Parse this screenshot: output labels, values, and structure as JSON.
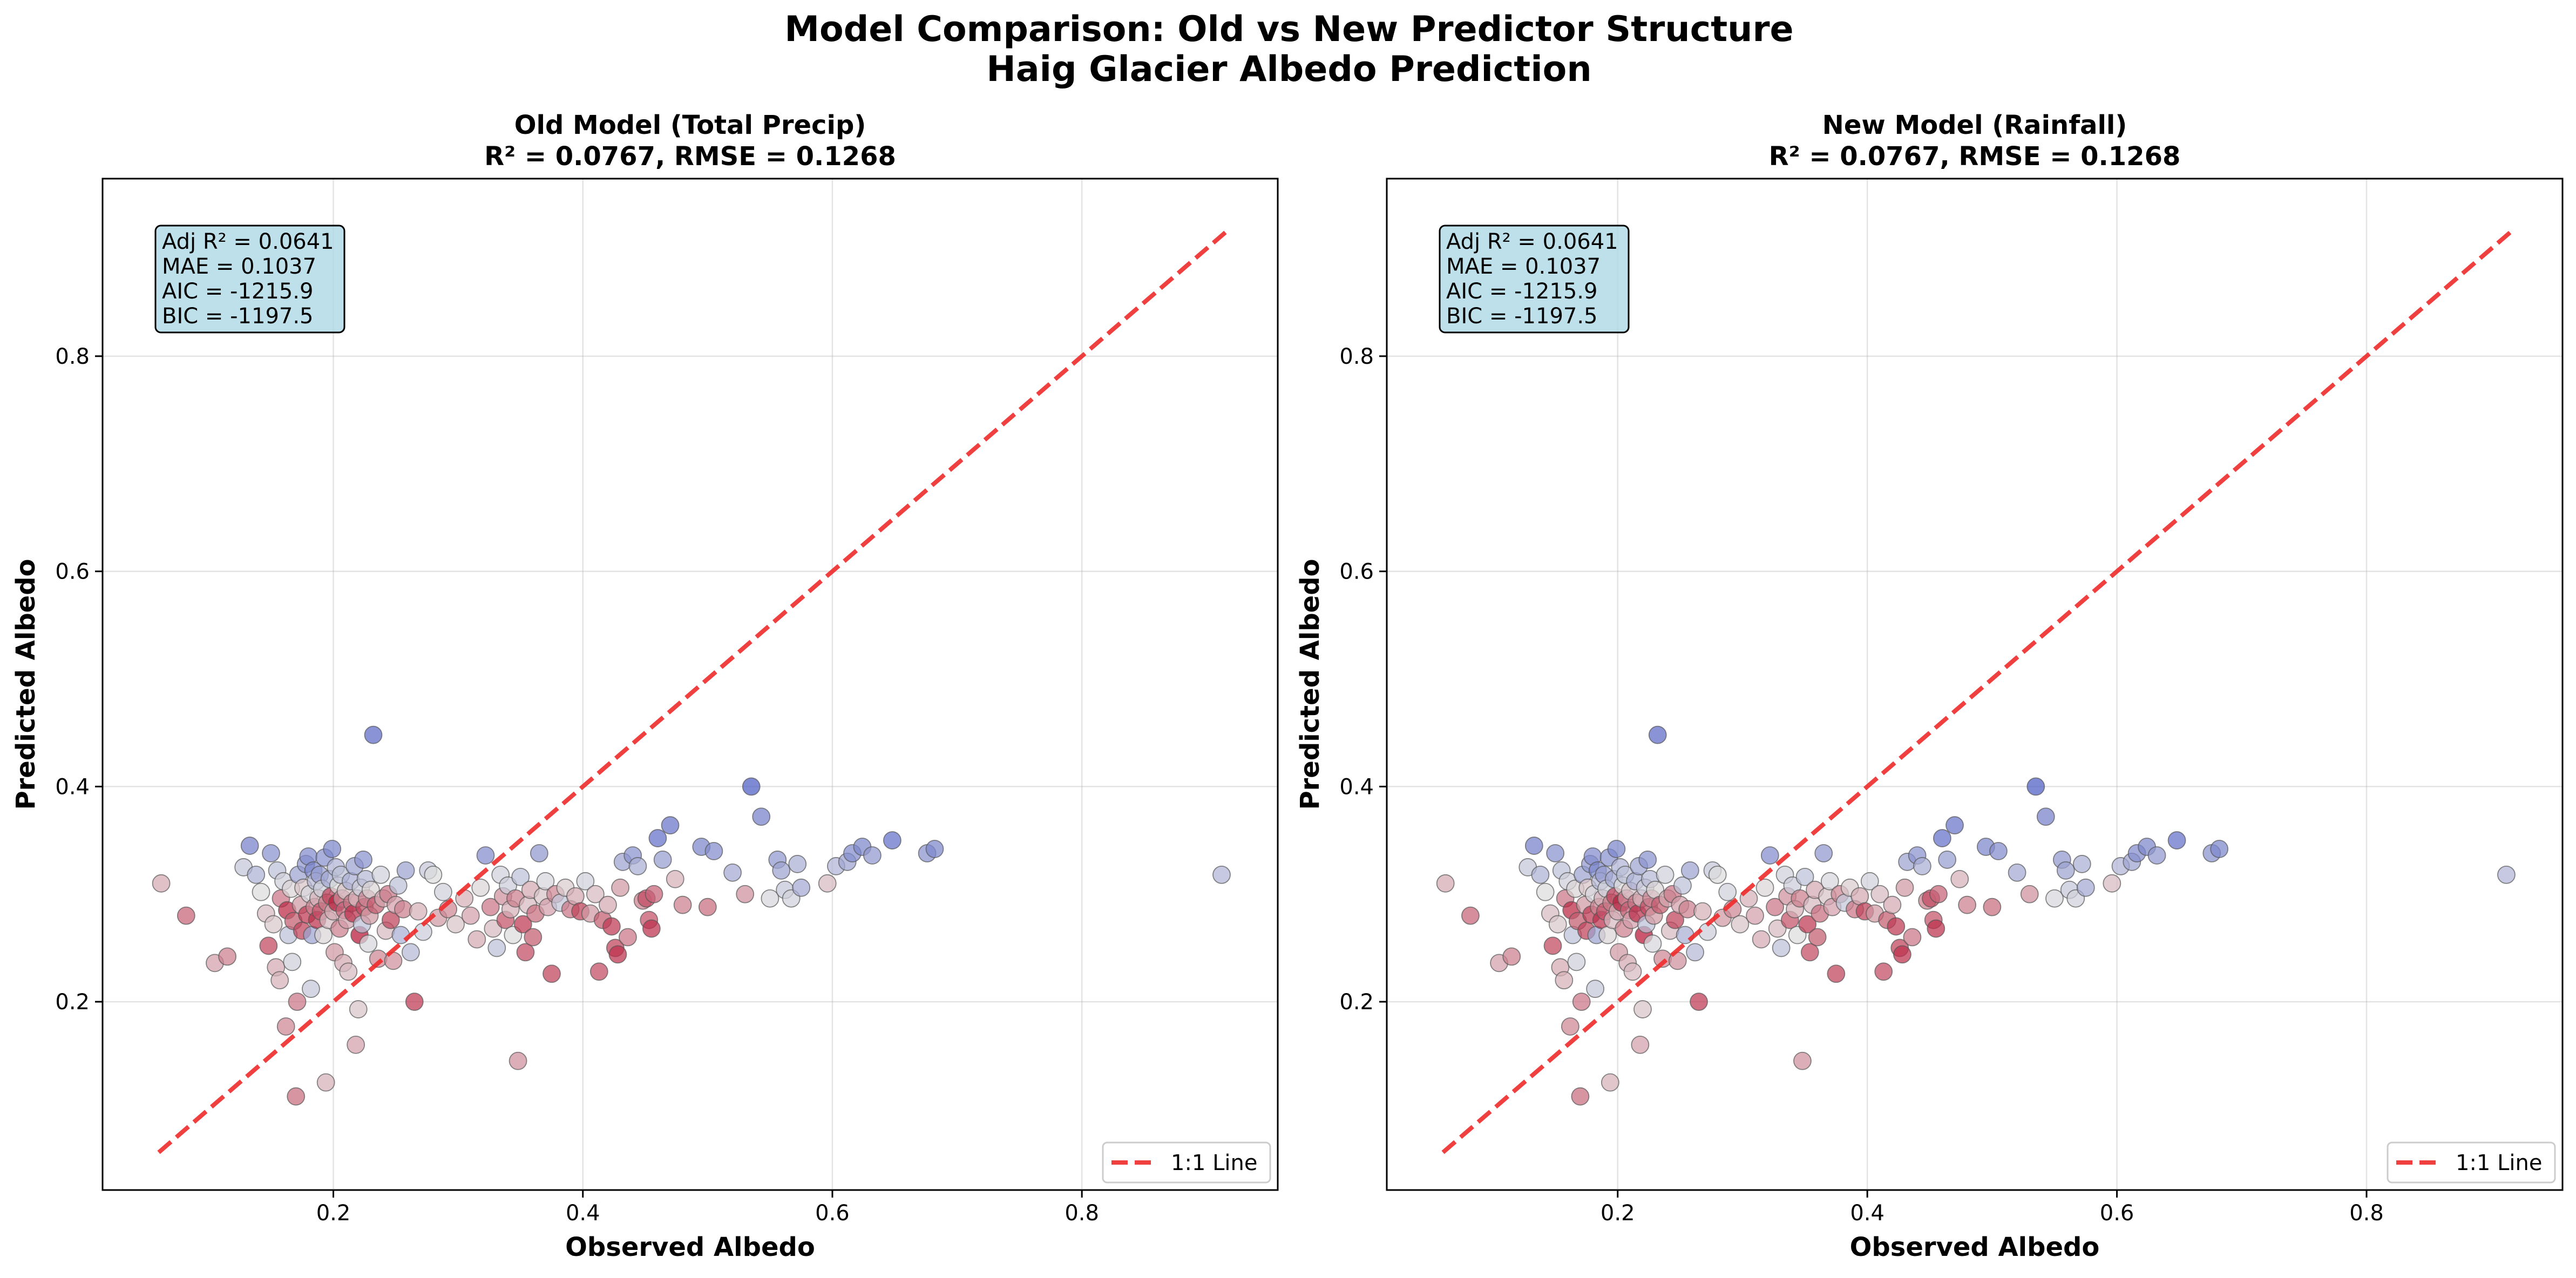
{
  "figure": {
    "title_line1": "Model Comparison: Old vs New Predictor Structure",
    "title_line2": "Haig Glacier Albedo Prediction"
  },
  "chart_data": [
    {
      "type": "scatter",
      "title_line1": "Old Model (Total Precip)",
      "title_line2": "R² = 0.0767, RMSE = 0.1268",
      "xlabel": "Observed Albedo",
      "ylabel": "Predicted Albedo",
      "xlim": [
        0.015,
        0.957
      ],
      "ylim": [
        0.025,
        0.965
      ],
      "xticks": [
        0.2,
        0.4,
        0.6,
        0.8
      ],
      "yticks": [
        0.2,
        0.4,
        0.6,
        0.8
      ],
      "grid": true,
      "stats_text": [
        "Adj R² = 0.0641",
        "MAE = 0.1037",
        "AIC = -1215.9",
        "BIC = -1197.5"
      ],
      "legend_position": "lower-right",
      "legend": [
        {
          "label": "1:1 Line",
          "color": "#ee2a2a",
          "style": "dashed"
        }
      ],
      "reference_line": {
        "x": [
          0.06,
          0.915
        ],
        "y": [
          0.06,
          0.915
        ]
      },
      "colormap": "coolwarm"
    },
    {
      "type": "scatter",
      "title_line1": "New Model (Rainfall)",
      "title_line2": "R² = 0.0767, RMSE = 0.1268",
      "xlabel": "Observed Albedo",
      "ylabel": "Predicted Albedo",
      "xlim": [
        0.015,
        0.957
      ],
      "ylim": [
        0.025,
        0.965
      ],
      "xticks": [
        0.2,
        0.4,
        0.6,
        0.8
      ],
      "yticks": [
        0.2,
        0.4,
        0.6,
        0.8
      ],
      "grid": true,
      "stats_text": [
        "Adj R² = 0.0641",
        "MAE = 0.1037",
        "AIC = -1215.9",
        "BIC = -1197.5"
      ],
      "legend_position": "lower-right",
      "legend": [
        {
          "label": "1:1 Line",
          "color": "#ee2a2a",
          "style": "dashed"
        }
      ],
      "reference_line": {
        "x": [
          0.06,
          0.915
        ],
        "y": [
          0.06,
          0.915
        ]
      },
      "colormap": "coolwarm"
    }
  ],
  "points": [
    {
      "x": 0.062,
      "y": 0.31,
      "c": 0.62
    },
    {
      "x": 0.082,
      "y": 0.28,
      "c": 0.78
    },
    {
      "x": 0.105,
      "y": 0.236,
      "c": 0.64
    },
    {
      "x": 0.115,
      "y": 0.242,
      "c": 0.72
    },
    {
      "x": 0.128,
      "y": 0.325,
      "c": 0.42
    },
    {
      "x": 0.133,
      "y": 0.345,
      "c": 0.18
    },
    {
      "x": 0.138,
      "y": 0.318,
      "c": 0.35
    },
    {
      "x": 0.142,
      "y": 0.302,
      "c": 0.5
    },
    {
      "x": 0.146,
      "y": 0.282,
      "c": 0.58
    },
    {
      "x": 0.148,
      "y": 0.252,
      "c": 0.85
    },
    {
      "x": 0.15,
      "y": 0.338,
      "c": 0.24
    },
    {
      "x": 0.152,
      "y": 0.272,
      "c": 0.55
    },
    {
      "x": 0.154,
      "y": 0.232,
      "c": 0.62
    },
    {
      "x": 0.155,
      "y": 0.322,
      "c": 0.4
    },
    {
      "x": 0.157,
      "y": 0.22,
      "c": 0.6
    },
    {
      "x": 0.158,
      "y": 0.296,
      "c": 0.74
    },
    {
      "x": 0.16,
      "y": 0.312,
      "c": 0.45
    },
    {
      "x": 0.162,
      "y": 0.177,
      "c": 0.7
    },
    {
      "x": 0.163,
      "y": 0.285,
      "c": 0.92
    },
    {
      "x": 0.164,
      "y": 0.262,
      "c": 0.4
    },
    {
      "x": 0.166,
      "y": 0.305,
      "c": 0.52
    },
    {
      "x": 0.167,
      "y": 0.237,
      "c": 0.45
    },
    {
      "x": 0.168,
      "y": 0.275,
      "c": 0.8
    },
    {
      "x": 0.17,
      "y": 0.112,
      "c": 0.76
    },
    {
      "x": 0.171,
      "y": 0.2,
      "c": 0.74
    },
    {
      "x": 0.172,
      "y": 0.318,
      "c": 0.3
    },
    {
      "x": 0.174,
      "y": 0.29,
      "c": 0.66
    },
    {
      "x": 0.175,
      "y": 0.266,
      "c": 0.86
    },
    {
      "x": 0.176,
      "y": 0.306,
      "c": 0.56
    },
    {
      "x": 0.178,
      "y": 0.328,
      "c": 0.26
    },
    {
      "x": 0.179,
      "y": 0.281,
      "c": 0.88
    },
    {
      "x": 0.18,
      "y": 0.335,
      "c": 0.22
    },
    {
      "x": 0.181,
      "y": 0.3,
      "c": 0.48
    },
    {
      "x": 0.182,
      "y": 0.212,
      "c": 0.42
    },
    {
      "x": 0.183,
      "y": 0.262,
      "c": 0.3
    },
    {
      "x": 0.184,
      "y": 0.322,
      "c": 0.2
    },
    {
      "x": 0.185,
      "y": 0.288,
      "c": 0.7
    },
    {
      "x": 0.186,
      "y": 0.312,
      "c": 0.38
    },
    {
      "x": 0.187,
      "y": 0.276,
      "c": 0.9
    },
    {
      "x": 0.188,
      "y": 0.296,
      "c": 0.6
    },
    {
      "x": 0.189,
      "y": 0.318,
      "c": 0.28
    },
    {
      "x": 0.19,
      "y": 0.284,
      "c": 0.82
    },
    {
      "x": 0.191,
      "y": 0.305,
      "c": 0.45
    },
    {
      "x": 0.192,
      "y": 0.262,
      "c": 0.52
    },
    {
      "x": 0.193,
      "y": 0.334,
      "c": 0.24
    },
    {
      "x": 0.194,
      "y": 0.125,
      "c": 0.6
    },
    {
      "x": 0.195,
      "y": 0.292,
      "c": 0.72
    },
    {
      "x": 0.196,
      "y": 0.276,
      "c": 0.58
    },
    {
      "x": 0.197,
      "y": 0.314,
      "c": 0.32
    },
    {
      "x": 0.198,
      "y": 0.298,
      "c": 0.86
    },
    {
      "x": 0.199,
      "y": 0.342,
      "c": 0.2
    },
    {
      "x": 0.2,
      "y": 0.284,
      "c": 0.62
    },
    {
      "x": 0.201,
      "y": 0.246,
      "c": 0.66
    },
    {
      "x": 0.202,
      "y": 0.325,
      "c": 0.36
    },
    {
      "x": 0.203,
      "y": 0.292,
      "c": 0.94
    },
    {
      "x": 0.204,
      "y": 0.308,
      "c": 0.5
    },
    {
      "x": 0.205,
      "y": 0.268,
      "c": 0.72
    },
    {
      "x": 0.206,
      "y": 0.318,
      "c": 0.4
    },
    {
      "x": 0.207,
      "y": 0.296,
      "c": 0.68
    },
    {
      "x": 0.208,
      "y": 0.236,
      "c": 0.62
    },
    {
      "x": 0.209,
      "y": 0.285,
      "c": 0.78
    },
    {
      "x": 0.21,
      "y": 0.303,
      "c": 0.56
    },
    {
      "x": 0.211,
      "y": 0.276,
      "c": 0.64
    },
    {
      "x": 0.212,
      "y": 0.228,
      "c": 0.58
    },
    {
      "x": 0.214,
      "y": 0.312,
      "c": 0.34
    },
    {
      "x": 0.215,
      "y": 0.292,
      "c": 0.74
    },
    {
      "x": 0.216,
      "y": 0.282,
      "c": 0.9
    },
    {
      "x": 0.217,
      "y": 0.326,
      "c": 0.3
    },
    {
      "x": 0.218,
      "y": 0.16,
      "c": 0.64
    },
    {
      "x": 0.219,
      "y": 0.296,
      "c": 0.6
    },
    {
      "x": 0.22,
      "y": 0.193,
      "c": 0.56
    },
    {
      "x": 0.221,
      "y": 0.262,
      "c": 0.96
    },
    {
      "x": 0.222,
      "y": 0.306,
      "c": 0.44
    },
    {
      "x": 0.223,
      "y": 0.272,
      "c": 0.4
    },
    {
      "x": 0.224,
      "y": 0.332,
      "c": 0.24
    },
    {
      "x": 0.225,
      "y": 0.288,
      "c": 0.84
    },
    {
      "x": 0.226,
      "y": 0.314,
      "c": 0.38
    },
    {
      "x": 0.227,
      "y": 0.296,
      "c": 0.7
    },
    {
      "x": 0.228,
      "y": 0.254,
      "c": 0.48
    },
    {
      "x": 0.229,
      "y": 0.28,
      "c": 0.66
    },
    {
      "x": 0.23,
      "y": 0.304,
      "c": 0.52
    },
    {
      "x": 0.232,
      "y": 0.448,
      "c": 0.1
    },
    {
      "x": 0.234,
      "y": 0.29,
      "c": 0.8
    },
    {
      "x": 0.236,
      "y": 0.24,
      "c": 0.7
    },
    {
      "x": 0.238,
      "y": 0.318,
      "c": 0.46
    },
    {
      "x": 0.24,
      "y": 0.296,
      "c": 0.62
    },
    {
      "x": 0.242,
      "y": 0.266,
      "c": 0.58
    },
    {
      "x": 0.244,
      "y": 0.3,
      "c": 0.74
    },
    {
      "x": 0.246,
      "y": 0.276,
      "c": 0.86
    },
    {
      "x": 0.248,
      "y": 0.238,
      "c": 0.68
    },
    {
      "x": 0.25,
      "y": 0.29,
      "c": 0.64
    },
    {
      "x": 0.252,
      "y": 0.308,
      "c": 0.4
    },
    {
      "x": 0.254,
      "y": 0.262,
      "c": 0.34
    },
    {
      "x": 0.256,
      "y": 0.286,
      "c": 0.72
    },
    {
      "x": 0.258,
      "y": 0.322,
      "c": 0.3
    },
    {
      "x": 0.262,
      "y": 0.246,
      "c": 0.38
    },
    {
      "x": 0.265,
      "y": 0.2,
      "c": 0.88
    },
    {
      "x": 0.268,
      "y": 0.284,
      "c": 0.6
    },
    {
      "x": 0.272,
      "y": 0.265,
      "c": 0.44
    },
    {
      "x": 0.276,
      "y": 0.322,
      "c": 0.42
    },
    {
      "x": 0.28,
      "y": 0.318,
      "c": 0.5
    },
    {
      "x": 0.284,
      "y": 0.278,
      "c": 0.66
    },
    {
      "x": 0.288,
      "y": 0.302,
      "c": 0.46
    },
    {
      "x": 0.292,
      "y": 0.286,
      "c": 0.7
    },
    {
      "x": 0.298,
      "y": 0.272,
      "c": 0.56
    },
    {
      "x": 0.305,
      "y": 0.296,
      "c": 0.6
    },
    {
      "x": 0.31,
      "y": 0.28,
      "c": 0.64
    },
    {
      "x": 0.315,
      "y": 0.258,
      "c": 0.62
    },
    {
      "x": 0.318,
      "y": 0.306,
      "c": 0.52
    },
    {
      "x": 0.322,
      "y": 0.336,
      "c": 0.22
    },
    {
      "x": 0.326,
      "y": 0.288,
      "c": 0.74
    },
    {
      "x": 0.328,
      "y": 0.268,
      "c": 0.58
    },
    {
      "x": 0.331,
      "y": 0.25,
      "c": 0.4
    },
    {
      "x": 0.334,
      "y": 0.318,
      "c": 0.46
    },
    {
      "x": 0.336,
      "y": 0.298,
      "c": 0.68
    },
    {
      "x": 0.338,
      "y": 0.276,
      "c": 0.82
    },
    {
      "x": 0.34,
      "y": 0.308,
      "c": 0.44
    },
    {
      "x": 0.342,
      "y": 0.286,
      "c": 0.6
    },
    {
      "x": 0.344,
      "y": 0.262,
      "c": 0.5
    },
    {
      "x": 0.346,
      "y": 0.296,
      "c": 0.72
    },
    {
      "x": 0.348,
      "y": 0.145,
      "c": 0.68
    },
    {
      "x": 0.35,
      "y": 0.316,
      "c": 0.4
    },
    {
      "x": 0.352,
      "y": 0.272,
      "c": 0.88
    },
    {
      "x": 0.354,
      "y": 0.246,
      "c": 0.84
    },
    {
      "x": 0.356,
      "y": 0.29,
      "c": 0.58
    },
    {
      "x": 0.358,
      "y": 0.304,
      "c": 0.62
    },
    {
      "x": 0.36,
      "y": 0.26,
      "c": 0.8
    },
    {
      "x": 0.362,
      "y": 0.282,
      "c": 0.76
    },
    {
      "x": 0.365,
      "y": 0.338,
      "c": 0.26
    },
    {
      "x": 0.368,
      "y": 0.298,
      "c": 0.56
    },
    {
      "x": 0.37,
      "y": 0.312,
      "c": 0.48
    },
    {
      "x": 0.372,
      "y": 0.288,
      "c": 0.64
    },
    {
      "x": 0.375,
      "y": 0.226,
      "c": 0.86
    },
    {
      "x": 0.378,
      "y": 0.3,
      "c": 0.7
    },
    {
      "x": 0.382,
      "y": 0.292,
      "c": 0.42
    },
    {
      "x": 0.386,
      "y": 0.306,
      "c": 0.54
    },
    {
      "x": 0.39,
      "y": 0.286,
      "c": 0.74
    },
    {
      "x": 0.394,
      "y": 0.298,
      "c": 0.62
    },
    {
      "x": 0.398,
      "y": 0.284,
      "c": 0.86
    },
    {
      "x": 0.402,
      "y": 0.312,
      "c": 0.46
    },
    {
      "x": 0.406,
      "y": 0.282,
      "c": 0.66
    },
    {
      "x": 0.41,
      "y": 0.3,
      "c": 0.58
    },
    {
      "x": 0.413,
      "y": 0.228,
      "c": 0.84
    },
    {
      "x": 0.416,
      "y": 0.276,
      "c": 0.8
    },
    {
      "x": 0.42,
      "y": 0.29,
      "c": 0.62
    },
    {
      "x": 0.423,
      "y": 0.27,
      "c": 0.88
    },
    {
      "x": 0.426,
      "y": 0.25,
      "c": 0.86
    },
    {
      "x": 0.428,
      "y": 0.244,
      "c": 0.9
    },
    {
      "x": 0.43,
      "y": 0.306,
      "c": 0.66
    },
    {
      "x": 0.432,
      "y": 0.33,
      "c": 0.3
    },
    {
      "x": 0.436,
      "y": 0.26,
      "c": 0.74
    },
    {
      "x": 0.44,
      "y": 0.336,
      "c": 0.24
    },
    {
      "x": 0.444,
      "y": 0.326,
      "c": 0.34
    },
    {
      "x": 0.448,
      "y": 0.294,
      "c": 0.72
    },
    {
      "x": 0.451,
      "y": 0.296,
      "c": 0.84
    },
    {
      "x": 0.453,
      "y": 0.276,
      "c": 0.82
    },
    {
      "x": 0.455,
      "y": 0.268,
      "c": 0.9
    },
    {
      "x": 0.457,
      "y": 0.3,
      "c": 0.78
    },
    {
      "x": 0.46,
      "y": 0.352,
      "c": 0.12
    },
    {
      "x": 0.464,
      "y": 0.332,
      "c": 0.28
    },
    {
      "x": 0.47,
      "y": 0.364,
      "c": 0.14
    },
    {
      "x": 0.474,
      "y": 0.314,
      "c": 0.6
    },
    {
      "x": 0.48,
      "y": 0.29,
      "c": 0.72
    },
    {
      "x": 0.495,
      "y": 0.344,
      "c": 0.2
    },
    {
      "x": 0.5,
      "y": 0.288,
      "c": 0.76
    },
    {
      "x": 0.505,
      "y": 0.34,
      "c": 0.22
    },
    {
      "x": 0.52,
      "y": 0.32,
      "c": 0.32
    },
    {
      "x": 0.53,
      "y": 0.3,
      "c": 0.68
    },
    {
      "x": 0.535,
      "y": 0.4,
      "c": 0.06
    },
    {
      "x": 0.543,
      "y": 0.372,
      "c": 0.18
    },
    {
      "x": 0.55,
      "y": 0.296,
      "c": 0.48
    },
    {
      "x": 0.556,
      "y": 0.332,
      "c": 0.26
    },
    {
      "x": 0.559,
      "y": 0.322,
      "c": 0.3
    },
    {
      "x": 0.562,
      "y": 0.304,
      "c": 0.42
    },
    {
      "x": 0.567,
      "y": 0.296,
      "c": 0.46
    },
    {
      "x": 0.572,
      "y": 0.328,
      "c": 0.34
    },
    {
      "x": 0.575,
      "y": 0.306,
      "c": 0.32
    },
    {
      "x": 0.596,
      "y": 0.31,
      "c": 0.58
    },
    {
      "x": 0.603,
      "y": 0.326,
      "c": 0.36
    },
    {
      "x": 0.612,
      "y": 0.33,
      "c": 0.3
    },
    {
      "x": 0.616,
      "y": 0.338,
      "c": 0.22
    },
    {
      "x": 0.624,
      "y": 0.344,
      "c": 0.2
    },
    {
      "x": 0.632,
      "y": 0.336,
      "c": 0.26
    },
    {
      "x": 0.648,
      "y": 0.35,
      "c": 0.12
    },
    {
      "x": 0.676,
      "y": 0.338,
      "c": 0.24
    },
    {
      "x": 0.682,
      "y": 0.342,
      "c": 0.2
    },
    {
      "x": 0.912,
      "y": 0.318,
      "c": 0.36
    }
  ]
}
